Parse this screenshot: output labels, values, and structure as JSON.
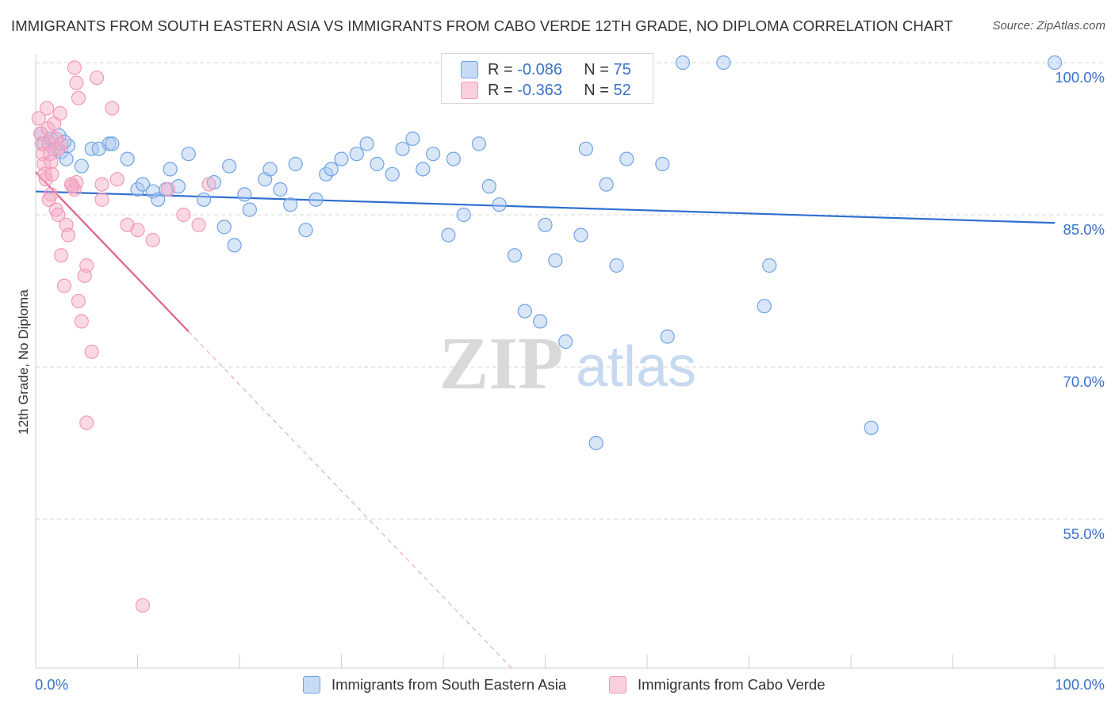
{
  "title": "IMMIGRANTS FROM SOUTH EASTERN ASIA VS IMMIGRANTS FROM CABO VERDE 12TH GRADE, NO DIPLOMA CORRELATION CHART",
  "source": "Source: ZipAtlas.com",
  "watermark": {
    "zip": "ZIP",
    "atlas": "atlas"
  },
  "legend": {
    "r_label": "R =",
    "n_label": "N =",
    "series": [
      {
        "r": "-0.086",
        "n": "75"
      },
      {
        "r": "-0.363",
        "n": "52"
      }
    ]
  },
  "chart_data": {
    "type": "scatter",
    "title": "IMMIGRANTS FROM SOUTH EASTERN ASIA VS IMMIGRANTS FROM CABO VERDE 12TH GRADE, NO DIPLOMA CORRELATION CHART",
    "xlabel": "",
    "ylabel": "12th Grade, No Diploma",
    "xlim": [
      0,
      100
    ],
    "ylim": [
      40,
      101
    ],
    "x_ticks_labels": [
      "0.0%",
      "100.0%"
    ],
    "y_ticks": [
      100,
      85,
      70,
      55
    ],
    "y_ticks_labels": [
      "100.0%",
      "85.0%",
      "70.0%",
      "55.0%"
    ],
    "grid": "horizontal dashed",
    "legend_position": "top-center",
    "series": [
      {
        "name": "Immigrants from South Eastern Asia",
        "color": "#6fa3e6",
        "line_color": "#2f6fd0",
        "trend": {
          "x": [
            0,
            100
          ],
          "y": [
            87.3,
            84.2
          ]
        },
        "points": [
          [
            43.0,
            100.0
          ],
          [
            63.5,
            100.0
          ],
          [
            67.5,
            100.0
          ],
          [
            100.0,
            100.0
          ],
          [
            0.5,
            93.0
          ],
          [
            0.8,
            92.0
          ],
          [
            1.5,
            92.5
          ],
          [
            1.8,
            91.5
          ],
          [
            2.3,
            92.8
          ],
          [
            2.5,
            91.2
          ],
          [
            3.0,
            90.5
          ],
          [
            3.2,
            91.8
          ],
          [
            2.8,
            92.2
          ],
          [
            4.5,
            89.8
          ],
          [
            5.5,
            91.5
          ],
          [
            6.2,
            91.5
          ],
          [
            7.2,
            92.0
          ],
          [
            7.5,
            92.0
          ],
          [
            9.0,
            90.5
          ],
          [
            10.0,
            87.5
          ],
          [
            10.5,
            88.0
          ],
          [
            11.5,
            87.3
          ],
          [
            12.0,
            86.5
          ],
          [
            12.8,
            87.5
          ],
          [
            13.2,
            89.5
          ],
          [
            14.0,
            87.8
          ],
          [
            15.0,
            91.0
          ],
          [
            16.5,
            86.5
          ],
          [
            17.5,
            88.2
          ],
          [
            18.5,
            83.8
          ],
          [
            19.0,
            89.8
          ],
          [
            19.5,
            82.0
          ],
          [
            20.5,
            87.0
          ],
          [
            21.0,
            85.5
          ],
          [
            22.5,
            88.5
          ],
          [
            23.0,
            89.5
          ],
          [
            24.0,
            87.5
          ],
          [
            25.0,
            86.0
          ],
          [
            25.5,
            90.0
          ],
          [
            26.5,
            83.5
          ],
          [
            27.5,
            86.5
          ],
          [
            28.5,
            89.0
          ],
          [
            29.0,
            89.5
          ],
          [
            30.0,
            90.5
          ],
          [
            31.5,
            91.0
          ],
          [
            32.5,
            92.0
          ],
          [
            33.5,
            90.0
          ],
          [
            35.0,
            89.0
          ],
          [
            36.0,
            91.5
          ],
          [
            37.0,
            92.5
          ],
          [
            38.0,
            89.5
          ],
          [
            39.0,
            91.0
          ],
          [
            40.5,
            83.0
          ],
          [
            41.0,
            90.5
          ],
          [
            42.0,
            85.0
          ],
          [
            43.5,
            92.0
          ],
          [
            44.5,
            87.8
          ],
          [
            45.5,
            86.0
          ],
          [
            47.0,
            81.0
          ],
          [
            48.0,
            75.5
          ],
          [
            49.5,
            74.5
          ],
          [
            50.0,
            84.0
          ],
          [
            51.0,
            80.5
          ],
          [
            52.0,
            72.5
          ],
          [
            53.5,
            83.0
          ],
          [
            54.0,
            91.5
          ],
          [
            56.0,
            88.0
          ],
          [
            57.0,
            80.0
          ],
          [
            58.0,
            90.5
          ],
          [
            61.5,
            90.0
          ],
          [
            72.0,
            80.0
          ],
          [
            71.5,
            76.0
          ],
          [
            82.0,
            64.0
          ],
          [
            55.0,
            62.5
          ],
          [
            62.0,
            73.0
          ]
        ]
      },
      {
        "name": "Immigrants from Cabo Verde",
        "color": "#f29ab8",
        "line_color": "#e0608f",
        "trend": {
          "x": [
            0,
            15
          ],
          "y": [
            89.2,
            73.5
          ]
        },
        "trend_extension": {
          "x": [
            15,
            47
          ],
          "y": [
            73.5,
            40
          ]
        },
        "points": [
          [
            0.3,
            94.5
          ],
          [
            0.5,
            93.0
          ],
          [
            0.6,
            92.0
          ],
          [
            0.7,
            91.0
          ],
          [
            0.8,
            90.0
          ],
          [
            0.9,
            89.0
          ],
          [
            1.0,
            88.5
          ],
          [
            1.1,
            95.5
          ],
          [
            1.2,
            93.5
          ],
          [
            1.3,
            92.0
          ],
          [
            1.4,
            91.0
          ],
          [
            1.5,
            90.2
          ],
          [
            1.6,
            89.0
          ],
          [
            1.8,
            94.0
          ],
          [
            2.0,
            92.5
          ],
          [
            2.2,
            91.5
          ],
          [
            2.4,
            95.0
          ],
          [
            2.5,
            92.0
          ],
          [
            1.5,
            87.0
          ],
          [
            2.0,
            85.5
          ],
          [
            2.2,
            85.0
          ],
          [
            2.5,
            81.0
          ],
          [
            2.8,
            78.0
          ],
          [
            3.0,
            84.0
          ],
          [
            3.2,
            83.0
          ],
          [
            3.5,
            88.0
          ],
          [
            3.8,
            87.5
          ],
          [
            4.2,
            76.5
          ],
          [
            4.5,
            74.5
          ],
          [
            4.8,
            79.0
          ],
          [
            5.0,
            80.0
          ],
          [
            3.8,
            99.5
          ],
          [
            4.0,
            98.0
          ],
          [
            4.2,
            96.5
          ],
          [
            6.0,
            98.5
          ],
          [
            7.5,
            95.5
          ],
          [
            5.5,
            71.5
          ],
          [
            6.5,
            86.5
          ],
          [
            8.0,
            88.5
          ],
          [
            9.0,
            84.0
          ],
          [
            10.0,
            83.5
          ],
          [
            11.5,
            82.5
          ],
          [
            13.0,
            87.5
          ],
          [
            14.5,
            85.0
          ],
          [
            16.0,
            84.0
          ],
          [
            17.0,
            88.0
          ],
          [
            5.0,
            64.5
          ],
          [
            10.5,
            46.5
          ],
          [
            4.0,
            88.2
          ],
          [
            3.6,
            87.8
          ],
          [
            1.3,
            86.5
          ],
          [
            6.5,
            88.0
          ]
        ]
      }
    ]
  }
}
